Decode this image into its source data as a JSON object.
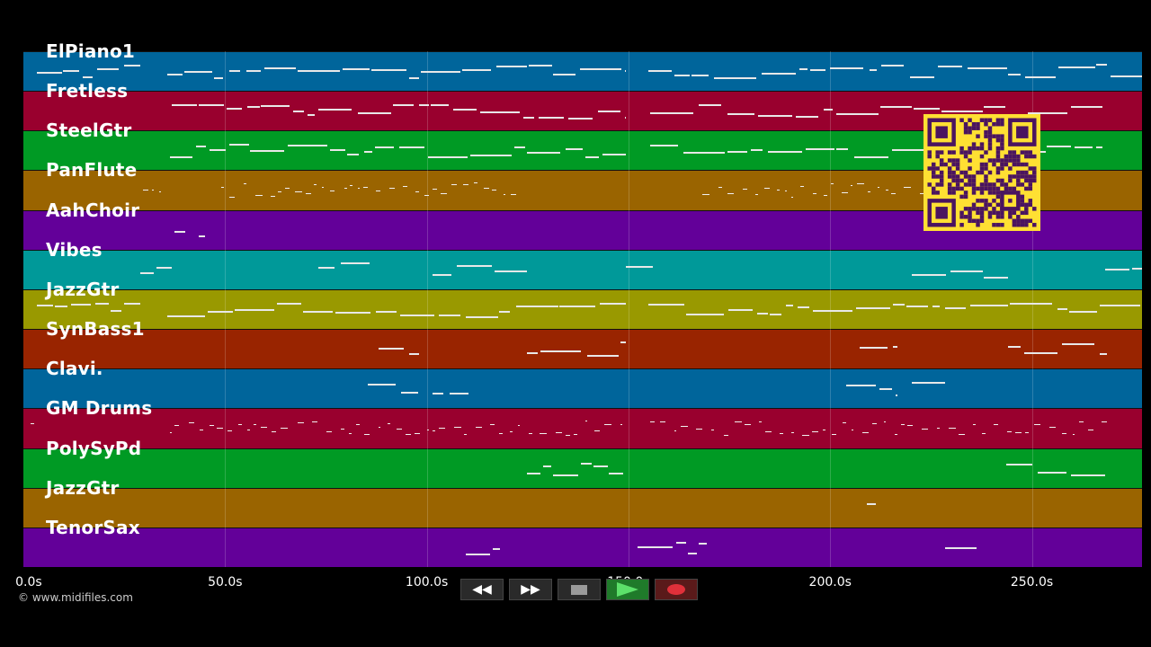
{
  "lanes": [
    {
      "label": "ElPiano1",
      "color": "#00659b"
    },
    {
      "label": "Fretless",
      "color": "#99002e"
    },
    {
      "label": "SteelGtr",
      "color": "#009a24"
    },
    {
      "label": "PanFlute",
      "color": "#9a6400"
    },
    {
      "label": "AahChoir",
      "color": "#630099"
    },
    {
      "label": "Vibes",
      "color": "#009999"
    },
    {
      "label": "JazzGtr",
      "color": "#999900"
    },
    {
      "label": "SynBass1",
      "color": "#992400"
    },
    {
      "label": "Clavi.",
      "color": "#00659b"
    },
    {
      "label": "GM Drums",
      "color": "#99002e"
    },
    {
      "label": "PolySyPd",
      "color": "#009a24"
    },
    {
      "label": "JazzGtr",
      "color": "#9a6400"
    },
    {
      "label": "TenorSax",
      "color": "#630099"
    }
  ],
  "timeline": {
    "ticks": [
      {
        "label": "0.0s",
        "t": 0
      },
      {
        "label": "50.0s",
        "t": 50
      },
      {
        "label": "100.0s",
        "t": 100
      },
      {
        "label": "150.0s",
        "t": 150
      },
      {
        "label": "200.0s",
        "t": 200
      },
      {
        "label": "250.0s",
        "t": 250
      }
    ],
    "max_seconds": 277.3
  },
  "copyright": "© www.midifiles.com",
  "qr_icon": "qr-code-icon",
  "transport": {
    "rewind_icon": "rewind-icon",
    "forward_icon": "fast-forward-icon",
    "stop_icon": "stop-icon",
    "play_icon": "play-icon",
    "record_icon": "record-icon",
    "rewind_glyph": "◀◀",
    "forward_glyph": "▶▶"
  }
}
